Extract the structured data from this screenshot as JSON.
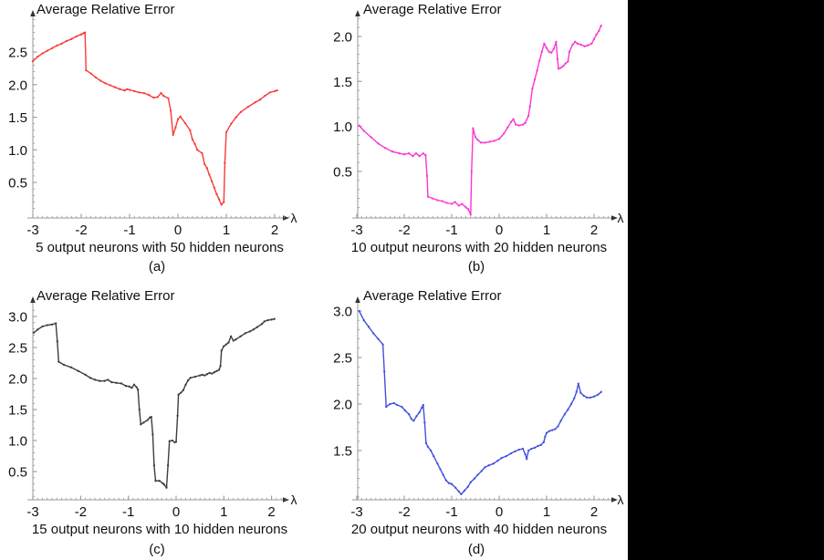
{
  "page": {
    "background": "#ffffff",
    "right_bar_color": "#000000"
  },
  "chart_data": [
    {
      "type": "line",
      "title": "Average Relative Error",
      "xlabel": "λ",
      "caption": "5 output neurons with 50 hidden neurons",
      "panel_label": "(a)",
      "color": "#f93a3a",
      "x_ticks": [
        -3,
        -2,
        -1,
        0,
        1,
        2
      ],
      "y_ticks": [
        0.5,
        1.0,
        1.5,
        2.0,
        2.5
      ],
      "xlim": [
        -3,
        2.35
      ],
      "ylim": [
        0,
        3.05
      ],
      "grid": false,
      "points": [
        [
          -3,
          2.36
        ],
        [
          -2.9,
          2.43
        ],
        [
          -2.8,
          2.48
        ],
        [
          -2.7,
          2.52
        ],
        [
          -2.6,
          2.56
        ],
        [
          -2.5,
          2.6
        ],
        [
          -2.4,
          2.63
        ],
        [
          -2.3,
          2.67
        ],
        [
          -2.2,
          2.7
        ],
        [
          -2.1,
          2.74
        ],
        [
          -2,
          2.77
        ],
        [
          -1.95,
          2.79
        ],
        [
          -1.92,
          2.8
        ],
        [
          -1.9,
          2.22
        ],
        [
          -1.8,
          2.17
        ],
        [
          -1.7,
          2.11
        ],
        [
          -1.6,
          2.06
        ],
        [
          -1.5,
          2.02
        ],
        [
          -1.4,
          1.99
        ],
        [
          -1.3,
          1.96
        ],
        [
          -1.2,
          1.93
        ],
        [
          -1.1,
          1.91
        ],
        [
          -1.05,
          1.93
        ],
        [
          -1,
          1.92
        ],
        [
          -0.9,
          1.9
        ],
        [
          -0.8,
          1.88
        ],
        [
          -0.7,
          1.87
        ],
        [
          -0.6,
          1.84
        ],
        [
          -0.5,
          1.8
        ],
        [
          -0.42,
          1.81
        ],
        [
          -0.35,
          1.87
        ],
        [
          -0.3,
          1.83
        ],
        [
          -0.2,
          1.79
        ],
        [
          -0.15,
          1.6
        ],
        [
          -0.1,
          1.23
        ],
        [
          -0.05,
          1.34
        ],
        [
          0,
          1.47
        ],
        [
          0.05,
          1.51
        ],
        [
          0.15,
          1.41
        ],
        [
          0.25,
          1.3
        ],
        [
          0.3,
          1.16
        ],
        [
          0.35,
          1.09
        ],
        [
          0.4,
          1.0
        ],
        [
          0.5,
          0.95
        ],
        [
          0.55,
          0.78
        ],
        [
          0.6,
          0.72
        ],
        [
          0.65,
          0.62
        ],
        [
          0.7,
          0.52
        ],
        [
          0.75,
          0.42
        ],
        [
          0.8,
          0.32
        ],
        [
          0.85,
          0.24
        ],
        [
          0.9,
          0.16
        ],
        [
          0.95,
          0.2
        ],
        [
          0.97,
          0.8
        ],
        [
          1,
          1.27
        ],
        [
          1.1,
          1.4
        ],
        [
          1.2,
          1.5
        ],
        [
          1.3,
          1.58
        ],
        [
          1.45,
          1.66
        ],
        [
          1.6,
          1.73
        ],
        [
          1.7,
          1.77
        ],
        [
          1.8,
          1.83
        ],
        [
          1.9,
          1.88
        ],
        [
          2,
          1.9
        ],
        [
          2.05,
          1.91
        ]
      ]
    },
    {
      "type": "line",
      "title": "Average Relative Error",
      "xlabel": "λ",
      "caption": "10 output neurons with 20 hidden neurons",
      "panel_label": "(b)",
      "color": "#fb35d2",
      "x_ticks": [
        -3,
        -2,
        -1,
        0,
        1,
        2
      ],
      "y_ticks": [
        0.5,
        1.0,
        1.5,
        2.0
      ],
      "xlim": [
        -3,
        2.35
      ],
      "ylim": [
        0,
        2.22
      ],
      "grid": false,
      "points": [
        [
          -2.95,
          1.01
        ],
        [
          -2.85,
          0.95
        ],
        [
          -2.7,
          0.88
        ],
        [
          -2.55,
          0.81
        ],
        [
          -2.4,
          0.76
        ],
        [
          -2.25,
          0.72
        ],
        [
          -2.1,
          0.7
        ],
        [
          -2,
          0.69
        ],
        [
          -1.9,
          0.7
        ],
        [
          -1.82,
          0.67
        ],
        [
          -1.75,
          0.7
        ],
        [
          -1.68,
          0.67
        ],
        [
          -1.6,
          0.7
        ],
        [
          -1.55,
          0.68
        ],
        [
          -1.52,
          0.45
        ],
        [
          -1.5,
          0.22
        ],
        [
          -1.4,
          0.2
        ],
        [
          -1.3,
          0.18
        ],
        [
          -1.2,
          0.17
        ],
        [
          -1.1,
          0.15
        ],
        [
          -1,
          0.14
        ],
        [
          -0.93,
          0.16
        ],
        [
          -0.85,
          0.12
        ],
        [
          -0.78,
          0.14
        ],
        [
          -0.7,
          0.1
        ],
        [
          -0.65,
          0.08
        ],
        [
          -0.6,
          0.02
        ],
        [
          -0.58,
          0.5
        ],
        [
          -0.55,
          0.98
        ],
        [
          -0.5,
          0.88
        ],
        [
          -0.45,
          0.85
        ],
        [
          -0.38,
          0.82
        ],
        [
          -0.3,
          0.82
        ],
        [
          -0.2,
          0.83
        ],
        [
          -0.1,
          0.84
        ],
        [
          0,
          0.86
        ],
        [
          0.1,
          0.92
        ],
        [
          0.18,
          0.99
        ],
        [
          0.25,
          1.05
        ],
        [
          0.3,
          1.08
        ],
        [
          0.35,
          1.02
        ],
        [
          0.42,
          1.01
        ],
        [
          0.5,
          1.02
        ],
        [
          0.55,
          1.04
        ],
        [
          0.62,
          1.12
        ],
        [
          0.65,
          1.22
        ],
        [
          0.7,
          1.42
        ],
        [
          0.75,
          1.52
        ],
        [
          0.8,
          1.62
        ],
        [
          0.85,
          1.73
        ],
        [
          0.9,
          1.83
        ],
        [
          0.95,
          1.92
        ],
        [
          1,
          1.87
        ],
        [
          1.05,
          1.83
        ],
        [
          1.1,
          1.82
        ],
        [
          1.15,
          1.86
        ],
        [
          1.2,
          1.94
        ],
        [
          1.23,
          1.75
        ],
        [
          1.25,
          1.64
        ],
        [
          1.3,
          1.65
        ],
        [
          1.35,
          1.67
        ],
        [
          1.4,
          1.7
        ],
        [
          1.45,
          1.72
        ],
        [
          1.48,
          1.83
        ],
        [
          1.55,
          1.91
        ],
        [
          1.6,
          1.94
        ],
        [
          1.65,
          1.92
        ],
        [
          1.72,
          1.91
        ],
        [
          1.8,
          1.89
        ],
        [
          1.87,
          1.9
        ],
        [
          1.95,
          1.92
        ],
        [
          2,
          1.97
        ],
        [
          2.05,
          2.02
        ],
        [
          2.1,
          2.06
        ],
        [
          2.15,
          2.12
        ]
      ]
    },
    {
      "type": "line",
      "title": "Average Relative Error",
      "xlabel": "λ",
      "caption": "15 output neurons with 10 hidden neurons",
      "panel_label": "(c)",
      "color": "#3d3d3d",
      "x_ticks": [
        -3,
        -2,
        -1,
        0,
        1,
        2
      ],
      "y_ticks": [
        0.5,
        1.0,
        1.5,
        2.0,
        2.5,
        3.0
      ],
      "xlim": [
        -3,
        2.35
      ],
      "ylim": [
        0,
        3.2
      ],
      "grid": false,
      "points": [
        [
          -2.98,
          2.74
        ],
        [
          -2.9,
          2.79
        ],
        [
          -2.8,
          2.84
        ],
        [
          -2.7,
          2.86
        ],
        [
          -2.6,
          2.87
        ],
        [
          -2.52,
          2.89
        ],
        [
          -2.49,
          2.6
        ],
        [
          -2.46,
          2.27
        ],
        [
          -2.35,
          2.22
        ],
        [
          -2.2,
          2.18
        ],
        [
          -2.05,
          2.12
        ],
        [
          -1.9,
          2.06
        ],
        [
          -1.8,
          2.01
        ],
        [
          -1.7,
          1.98
        ],
        [
          -1.6,
          1.96
        ],
        [
          -1.5,
          1.96
        ],
        [
          -1.43,
          1.98
        ],
        [
          -1.35,
          1.94
        ],
        [
          -1.25,
          1.93
        ],
        [
          -1.15,
          1.92
        ],
        [
          -1.05,
          1.88
        ],
        [
          -0.98,
          1.87
        ],
        [
          -0.93,
          1.85
        ],
        [
          -0.88,
          1.9
        ],
        [
          -0.83,
          1.86
        ],
        [
          -0.8,
          1.82
        ],
        [
          -0.77,
          1.5
        ],
        [
          -0.74,
          1.26
        ],
        [
          -0.68,
          1.29
        ],
        [
          -0.6,
          1.33
        ],
        [
          -0.55,
          1.37
        ],
        [
          -0.52,
          1.38
        ],
        [
          -0.49,
          1.1
        ],
        [
          -0.46,
          0.6
        ],
        [
          -0.43,
          0.35
        ],
        [
          -0.35,
          0.35
        ],
        [
          -0.28,
          0.31
        ],
        [
          -0.25,
          0.29
        ],
        [
          -0.2,
          0.24
        ],
        [
          -0.17,
          0.6
        ],
        [
          -0.14,
          0.99
        ],
        [
          -0.08,
          1.0
        ],
        [
          -0.03,
          0.97
        ],
        [
          0,
          0.98
        ],
        [
          0.03,
          1.4
        ],
        [
          0.05,
          1.74
        ],
        [
          0.1,
          1.77
        ],
        [
          0.15,
          1.81
        ],
        [
          0.2,
          1.9
        ],
        [
          0.25,
          1.97
        ],
        [
          0.3,
          2.01
        ],
        [
          0.4,
          2.03
        ],
        [
          0.5,
          2.05
        ],
        [
          0.55,
          2.06
        ],
        [
          0.6,
          2.05
        ],
        [
          0.65,
          2.07
        ],
        [
          0.7,
          2.09
        ],
        [
          0.75,
          2.08
        ],
        [
          0.8,
          2.1
        ],
        [
          0.85,
          2.12
        ],
        [
          0.9,
          2.14
        ],
        [
          0.93,
          2.2
        ],
        [
          0.95,
          2.45
        ],
        [
          1,
          2.52
        ],
        [
          1.05,
          2.55
        ],
        [
          1.1,
          2.58
        ],
        [
          1.15,
          2.68
        ],
        [
          1.2,
          2.61
        ],
        [
          1.25,
          2.63
        ],
        [
          1.35,
          2.68
        ],
        [
          1.45,
          2.73
        ],
        [
          1.55,
          2.76
        ],
        [
          1.62,
          2.79
        ],
        [
          1.7,
          2.83
        ],
        [
          1.8,
          2.88
        ],
        [
          1.85,
          2.92
        ],
        [
          1.92,
          2.94
        ],
        [
          2,
          2.95
        ],
        [
          2.06,
          2.96
        ]
      ]
    },
    {
      "type": "line",
      "title": "Average Relative Error",
      "xlabel": "λ",
      "caption": "20 output neurons with 40 hidden neurons",
      "panel_label": "(d)",
      "color": "#4250df",
      "x_ticks": [
        -3,
        -2,
        -1,
        0,
        1,
        2
      ],
      "y_ticks": [
        1.5,
        2.0,
        2.5,
        3.0
      ],
      "xlim": [
        -3,
        2.35
      ],
      "ylim": [
        0.95,
        3.1
      ],
      "grid": false,
      "points": [
        [
          -2.95,
          3.0
        ],
        [
          -2.85,
          2.9
        ],
        [
          -2.75,
          2.83
        ],
        [
          -2.65,
          2.76
        ],
        [
          -2.55,
          2.7
        ],
        [
          -2.45,
          2.64
        ],
        [
          -2.42,
          2.35
        ],
        [
          -2.38,
          1.97
        ],
        [
          -2.3,
          2.0
        ],
        [
          -2.22,
          2.01
        ],
        [
          -2.15,
          1.99
        ],
        [
          -2.05,
          1.97
        ],
        [
          -1.98,
          1.93
        ],
        [
          -1.9,
          1.89
        ],
        [
          -1.85,
          1.84
        ],
        [
          -1.8,
          1.82
        ],
        [
          -1.74,
          1.87
        ],
        [
          -1.68,
          1.91
        ],
        [
          -1.63,
          1.96
        ],
        [
          -1.6,
          1.99
        ],
        [
          -1.57,
          1.8
        ],
        [
          -1.54,
          1.58
        ],
        [
          -1.5,
          1.54
        ],
        [
          -1.44,
          1.5
        ],
        [
          -1.38,
          1.44
        ],
        [
          -1.3,
          1.36
        ],
        [
          -1.24,
          1.3
        ],
        [
          -1.18,
          1.24
        ],
        [
          -1.12,
          1.18
        ],
        [
          -1.06,
          1.15
        ],
        [
          -1,
          1.14
        ],
        [
          -0.92,
          1.1
        ],
        [
          -0.85,
          1.06
        ],
        [
          -0.8,
          1.03
        ],
        [
          -0.73,
          1.07
        ],
        [
          -0.66,
          1.11
        ],
        [
          -0.6,
          1.16
        ],
        [
          -0.52,
          1.2
        ],
        [
          -0.45,
          1.24
        ],
        [
          -0.37,
          1.28
        ],
        [
          -0.3,
          1.32
        ],
        [
          -0.22,
          1.34
        ],
        [
          -0.12,
          1.36
        ],
        [
          -0.03,
          1.39
        ],
        [
          0.05,
          1.42
        ],
        [
          0.15,
          1.44
        ],
        [
          0.25,
          1.47
        ],
        [
          0.33,
          1.49
        ],
        [
          0.42,
          1.51
        ],
        [
          0.5,
          1.52
        ],
        [
          0.55,
          1.46
        ],
        [
          0.58,
          1.41
        ],
        [
          0.62,
          1.5
        ],
        [
          0.68,
          1.52
        ],
        [
          0.75,
          1.53
        ],
        [
          0.82,
          1.55
        ],
        [
          0.88,
          1.56
        ],
        [
          0.94,
          1.59
        ],
        [
          0.97,
          1.65
        ],
        [
          1,
          1.69
        ],
        [
          1.06,
          1.71
        ],
        [
          1.12,
          1.72
        ],
        [
          1.18,
          1.73
        ],
        [
          1.24,
          1.76
        ],
        [
          1.3,
          1.82
        ],
        [
          1.38,
          1.89
        ],
        [
          1.45,
          1.94
        ],
        [
          1.52,
          2.0
        ],
        [
          1.58,
          2.06
        ],
        [
          1.63,
          2.13
        ],
        [
          1.67,
          2.22
        ],
        [
          1.72,
          2.12
        ],
        [
          1.78,
          2.09
        ],
        [
          1.85,
          2.07
        ],
        [
          1.92,
          2.07
        ],
        [
          2,
          2.08
        ],
        [
          2.08,
          2.1
        ],
        [
          2.15,
          2.13
        ]
      ]
    }
  ]
}
